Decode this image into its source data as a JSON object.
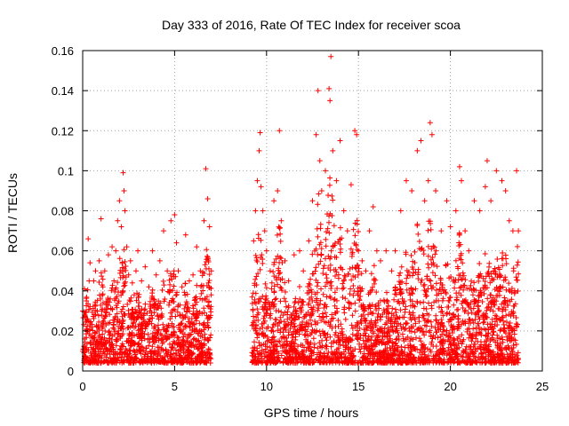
{
  "colors": {
    "series": "#ff0000",
    "axis": "#000000",
    "grid": "#a0a0a0"
  },
  "chart_data": {
    "type": "scatter",
    "title": "Day 333 of 2016, Rate Of TEC Index for receiver scoa",
    "xlabel": "GPS time / hours",
    "ylabel": "ROTI / TECUs",
    "xlim": [
      0,
      25
    ],
    "ylim": [
      0,
      0.16
    ],
    "xticks": [
      0,
      5,
      10,
      15,
      20,
      25
    ],
    "yticks": [
      0,
      0.02,
      0.04,
      0.06,
      0.08,
      0.1,
      0.12,
      0.14,
      0.16
    ],
    "xtick_labels": [
      "0",
      "5",
      "10",
      "15",
      "20",
      "25"
    ],
    "ytick_labels": [
      "0",
      "0.02",
      "0.04",
      "0.06",
      "0.08",
      "0.1",
      "0.12",
      "0.14",
      "0.16"
    ],
    "grid": true,
    "marker": "+",
    "data_gap_hours": [
      7.0,
      9.2
    ],
    "series": [
      {
        "x": [
          0.0,
          0.1,
          0.2,
          0.3,
          0.35,
          0.4,
          0.5,
          0.6,
          0.7,
          0.8,
          0.9,
          1.0,
          1.1,
          1.2,
          1.3,
          1.4,
          1.5,
          1.6,
          1.7,
          1.8,
          1.9,
          2.0,
          2.1,
          2.2,
          2.25,
          2.3,
          2.4,
          2.5,
          2.6,
          2.7,
          2.8,
          2.9,
          3.0,
          3.2,
          3.4,
          3.6,
          3.8,
          4.0,
          4.2,
          4.4,
          4.6,
          4.8,
          5.0,
          5.1,
          5.2,
          5.4,
          5.6,
          5.8,
          6.0,
          6.2,
          6.4,
          6.6,
          6.7,
          6.8,
          6.9,
          7.0,
          9.3,
          9.4,
          9.5,
          9.6,
          9.65,
          9.7,
          9.8,
          9.9,
          10.0,
          10.2,
          10.4,
          10.6,
          10.7,
          10.8,
          11.0,
          11.2,
          11.5,
          11.8,
          12.0,
          12.3,
          12.5,
          12.7,
          12.8,
          12.9,
          13.0,
          13.2,
          13.4,
          13.45,
          13.5,
          13.6,
          13.8,
          14.0,
          14.2,
          14.4,
          14.6,
          14.8,
          14.9,
          15.0,
          15.2,
          15.4,
          15.6,
          15.8,
          16.0,
          16.2,
          16.5,
          16.8,
          17.0,
          17.3,
          17.6,
          17.9,
          18.2,
          18.4,
          18.6,
          18.8,
          18.9,
          19.0,
          19.2,
          19.5,
          19.8,
          20.0,
          20.3,
          20.5,
          20.6,
          20.8,
          21.0,
          21.3,
          21.6,
          21.9,
          22.0,
          22.2,
          22.5,
          22.8,
          23.0,
          23.2,
          23.4,
          23.6,
          23.7
        ],
        "y": [
          0.03,
          0.041,
          0.035,
          0.066,
          0.045,
          0.054,
          0.022,
          0.045,
          0.05,
          0.03,
          0.055,
          0.076,
          0.042,
          0.05,
          0.033,
          0.058,
          0.036,
          0.062,
          0.045,
          0.06,
          0.075,
          0.085,
          0.072,
          0.099,
          0.09,
          0.08,
          0.062,
          0.048,
          0.055,
          0.044,
          0.038,
          0.05,
          0.06,
          0.045,
          0.052,
          0.042,
          0.06,
          0.048,
          0.055,
          0.07,
          0.05,
          0.075,
          0.078,
          0.064,
          0.05,
          0.042,
          0.068,
          0.045,
          0.048,
          0.062,
          0.05,
          0.075,
          0.101,
          0.086,
          0.072,
          0.05,
          0.065,
          0.08,
          0.095,
          0.11,
          0.119,
          0.092,
          0.08,
          0.07,
          0.06,
          0.05,
          0.085,
          0.09,
          0.12,
          0.075,
          0.055,
          0.045,
          0.058,
          0.06,
          0.05,
          0.065,
          0.085,
          0.118,
          0.14,
          0.105,
          0.09,
          0.1,
          0.141,
          0.135,
          0.157,
          0.11,
          0.095,
          0.115,
          0.08,
          0.07,
          0.093,
          0.12,
          0.118,
          0.06,
          0.055,
          0.05,
          0.07,
          0.082,
          0.06,
          0.055,
          0.06,
          0.05,
          0.06,
          0.08,
          0.095,
          0.09,
          0.11,
          0.115,
          0.085,
          0.095,
          0.124,
          0.118,
          0.09,
          0.07,
          0.085,
          0.072,
          0.08,
          0.102,
          0.095,
          0.07,
          0.06,
          0.085,
          0.08,
          0.092,
          0.105,
          0.085,
          0.1,
          0.095,
          0.09,
          0.075,
          0.07,
          0.1,
          0.07
        ]
      }
    ]
  }
}
